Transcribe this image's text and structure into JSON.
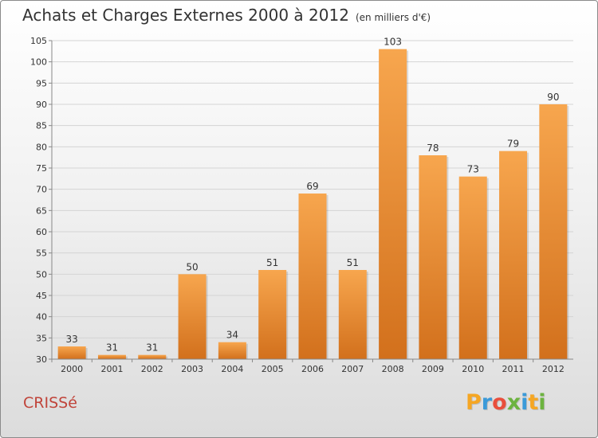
{
  "header": {
    "title": "Achats et Charges Externes 2000 à 2012",
    "subtitle": "(en milliers d'€)"
  },
  "footer": {
    "commune": "CRISSé",
    "logo": {
      "letters": [
        "P",
        "r",
        "o",
        "x",
        "i",
        "t",
        "i"
      ],
      "colors": [
        "#f5a623",
        "#3a9ad9",
        "#e94e3c",
        "#6cb33f",
        "#3a9ad9",
        "#f5a623",
        "#6cb33f"
      ]
    }
  },
  "chart_data": {
    "type": "bar",
    "title": "Achats et Charges Externes 2000 à 2012",
    "subtitle": "(en milliers d'€)",
    "categories": [
      "2000",
      "2001",
      "2002",
      "2003",
      "2004",
      "2005",
      "2006",
      "2007",
      "2008",
      "2009",
      "2010",
      "2011",
      "2012"
    ],
    "values": [
      33,
      31,
      31,
      50,
      34,
      51,
      69,
      51,
      103,
      78,
      73,
      79,
      90
    ],
    "ylim": [
      30,
      105
    ],
    "yticks": [
      30,
      35,
      40,
      45,
      50,
      55,
      60,
      65,
      70,
      75,
      80,
      85,
      90,
      95,
      100,
      105
    ],
    "grid": true,
    "bar_color_light": "#f7a64e",
    "bar_color_dark": "#d2701c"
  }
}
